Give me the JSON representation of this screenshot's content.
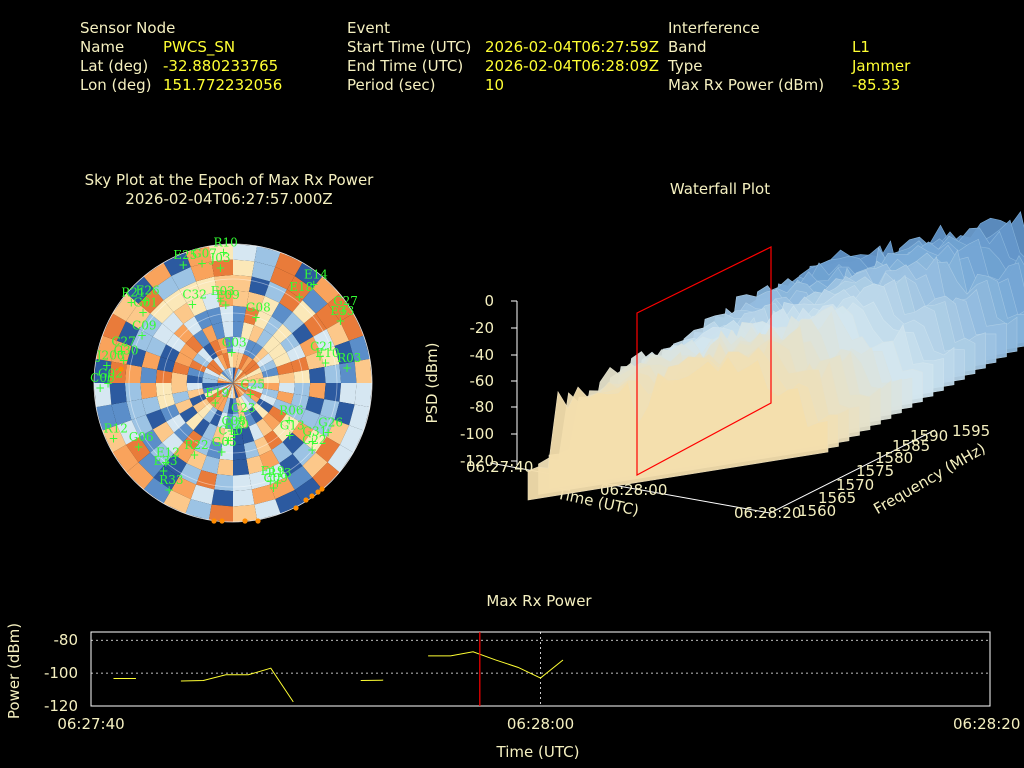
{
  "header": {
    "sensor": {
      "title": "Sensor Node",
      "name_label": "Name",
      "name": "PWCS_SN",
      "lat_label": "Lat (deg)",
      "lat": "-32.880233765",
      "lon_label": "Lon (deg)",
      "lon": "151.772232056"
    },
    "event": {
      "title": "Event",
      "start_label": "Start Time (UTC)",
      "start": "2026-02-04T06:27:59Z",
      "end_label": "End Time (UTC)",
      "end": "2026-02-04T06:28:09Z",
      "period_label": "Period (sec)",
      "period": "10"
    },
    "interference": {
      "title": "Interference",
      "band_label": "Band",
      "band": "L1",
      "type_label": "Type",
      "type": "Jammer",
      "power_label": "Max Rx Power (dBm)",
      "power": "-85.33"
    }
  },
  "skyplot": {
    "title_line1": "Sky Plot at the Epoch of Max Rx Power",
    "title_line2": "2026-02-04T06:27:57.000Z",
    "satellites": [
      {
        "id": "R10",
        "az": -4,
        "el": 2
      },
      {
        "id": "E25",
        "az": -22,
        "el": 4
      },
      {
        "id": "G07",
        "az": -14,
        "el": 7
      },
      {
        "id": "J03",
        "az": -6,
        "el": 12
      },
      {
        "id": "E14",
        "az": 38,
        "el": 5
      },
      {
        "id": "G27",
        "az": 55,
        "el": 3
      },
      {
        "id": "E33",
        "az": 58,
        "el": 8
      },
      {
        "id": "E18",
        "az": 36,
        "el": 17
      },
      {
        "id": "R21",
        "az": -50,
        "el": 4
      },
      {
        "id": "E26",
        "az": -45,
        "el": 10
      },
      {
        "id": "C32",
        "az": -26,
        "el": 30
      },
      {
        "id": "E03",
        "az": -8,
        "el": 33
      },
      {
        "id": "E09",
        "az": -5,
        "el": 36
      },
      {
        "id": "G01",
        "az": -50,
        "el": 14
      },
      {
        "id": "C09",
        "az": -60,
        "el": 22
      },
      {
        "id": "C27",
        "az": -72,
        "el": 14
      },
      {
        "id": "G30",
        "az": -76,
        "el": 17
      },
      {
        "id": "C06",
        "az": -90,
        "el": 4
      },
      {
        "id": "G02",
        "az": -88,
        "el": 9
      },
      {
        "id": "J200",
        "az": -80,
        "el": 7
      },
      {
        "id": "G08",
        "az": 18,
        "el": 42
      },
      {
        "id": "G03",
        "az": -2,
        "el": 67
      },
      {
        "id": "C25",
        "az": 110,
        "el": 78
      },
      {
        "id": "C21",
        "az": 70,
        "el": 30
      },
      {
        "id": "E10",
        "az": 75,
        "el": 28
      },
      {
        "id": "R03",
        "az": 80,
        "el": 15
      },
      {
        "id": "E19",
        "az": -130,
        "el": 75
      },
      {
        "id": "R12",
        "az": -113,
        "el": 6
      },
      {
        "id": "G05",
        "az": -170,
        "el": 48
      },
      {
        "id": "C10",
        "az": -175,
        "el": 56
      },
      {
        "id": "R20",
        "az": 178,
        "el": 60
      },
      {
        "id": "C23",
        "az": 165,
        "el": 70
      },
      {
        "id": "C08",
        "az": -178,
        "el": 62
      },
      {
        "id": "G13",
        "az": 130,
        "el": 42
      },
      {
        "id": "R06",
        "az": 120,
        "el": 48
      },
      {
        "id": "G26",
        "az": 115,
        "el": 22
      },
      {
        "id": "C22",
        "az": 128,
        "el": 25
      },
      {
        "id": "G31",
        "az": 124,
        "el": 28
      },
      {
        "id": "G06",
        "az": -122,
        "el": 18
      },
      {
        "id": "R22",
        "az": -150,
        "el": 40
      },
      {
        "id": "E33",
        "az": -140,
        "el": 20
      },
      {
        "id": "E12",
        "az": -138,
        "el": 25
      },
      {
        "id": "R33",
        "az": -148,
        "el": 12
      },
      {
        "id": "R13",
        "az": 155,
        "el": 22
      },
      {
        "id": "E19",
        "az": 158,
        "el": 25
      },
      {
        "id": "C09",
        "az": 158,
        "el": 20
      }
    ]
  },
  "waterfall": {
    "title": "Waterfall Plot",
    "zlabel": "PSD (dBm)",
    "xlabel": "Time (UTC)",
    "ylabel": "Frequency (MHz)",
    "z_ticks": [
      "0",
      "-20",
      "-40",
      "-60",
      "-80",
      "-100",
      "-120"
    ],
    "x_ticks": [
      "06:27:40",
      "06:28:00",
      "06:28:20"
    ],
    "y_ticks": [
      "1560",
      "1565",
      "1570",
      "1575",
      "1580",
      "1585",
      "1590",
      "1595"
    ]
  },
  "chart_data": {
    "type": "line",
    "title": "Max Rx Power",
    "xlabel": "Time (UTC)",
    "ylabel": "Power (dBm)",
    "x_ticks": [
      "06:27:40",
      "06:28:00",
      "06:28:20"
    ],
    "xlim_sec": [
      0,
      40
    ],
    "y_ticks": [
      -80,
      -100,
      -120
    ],
    "ylim": [
      -120,
      -75
    ],
    "grid": true,
    "marker_time_sec": 17.3,
    "series_color": "#ffff33",
    "marker_color": "#ff0000",
    "segments": [
      [
        [
          1.0,
          -103.3
        ],
        [
          2.0,
          -103.3
        ]
      ],
      [
        [
          4.0,
          -104.8
        ],
        [
          5.0,
          -104.5
        ],
        [
          6.0,
          -101.0
        ],
        [
          7.0,
          -101.0
        ],
        [
          8.0,
          -97.0
        ],
        [
          9.0,
          -117.5
        ]
      ],
      [
        [
          12.0,
          -104.5
        ],
        [
          13.0,
          -104.3
        ]
      ],
      [
        [
          15.0,
          -89.5
        ],
        [
          16.0,
          -89.5
        ],
        [
          17.0,
          -87.0
        ],
        [
          18.0,
          -92.0
        ],
        [
          19.0,
          -96.5
        ],
        [
          20.0,
          -103.0
        ],
        [
          21.0,
          -92.0
        ]
      ]
    ]
  },
  "colors": {
    "label": "#f5f0c0",
    "value": "#ffff33",
    "satellite": "#33ff33",
    "orange_marker": "#ff8c00",
    "red_frame": "#ff0000"
  }
}
